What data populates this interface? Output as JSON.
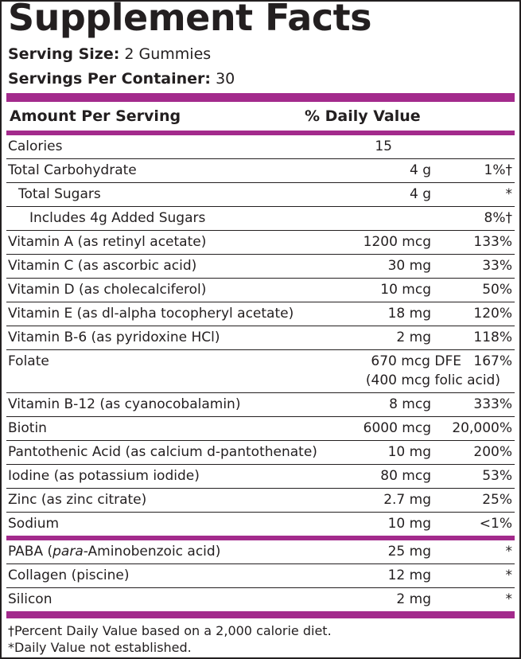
{
  "title": "Supplement Facts",
  "serving_size": {
    "label": "Serving Size:",
    "value": "2 Gummies"
  },
  "servings_per_container": {
    "label": "Servings Per Container:",
    "value": "30"
  },
  "header": {
    "amount": "Amount Per Serving",
    "dv": "% Daily Value"
  },
  "brand_color": "#a32a8c",
  "rows": [
    {
      "name": "Calories",
      "amount": "15",
      "dv": ""
    },
    {
      "name": "Total Carbohydrate",
      "amount": "4 g",
      "dv": "1%†"
    },
    {
      "name": "Total Sugars",
      "amount": "4 g",
      "dv": "*"
    },
    {
      "name": "Includes 4g Added Sugars",
      "amount": "",
      "dv": "8%†"
    },
    {
      "name": "Vitamin A (as retinyl acetate)",
      "amount": "1200 mcg",
      "dv": "133%"
    },
    {
      "name": "Vitamin C (as ascorbic acid)",
      "amount": "30 mg",
      "dv": "33%"
    },
    {
      "name": "Vitamin D (as cholecalciferol)",
      "amount": "10 mcg",
      "dv": "50%"
    },
    {
      "name": "Vitamin E (as dl-alpha tocopheryl acetate)",
      "amount": "18 mg",
      "dv": "120%"
    },
    {
      "name": "Vitamin B-6 (as pyridoxine HCl)",
      "amount": "2 mg",
      "dv": "118%"
    },
    {
      "name": "Folate",
      "amount": "670 mcg DFE",
      "dv": "167%",
      "sub_amount": "(400 mcg folic acid)"
    },
    {
      "name": "Vitamin B-12 (as cyanocobalamin)",
      "amount": "8 mcg",
      "dv": "333%"
    },
    {
      "name": "Biotin",
      "amount": "6000 mcg",
      "dv": "20,000%"
    },
    {
      "name": "Pantothenic Acid (as calcium d-pantothenate)",
      "amount": "10 mg",
      "dv": "200%"
    },
    {
      "name": "Iodine (as potassium iodide)",
      "amount": "80 mcg",
      "dv": "53%"
    },
    {
      "name": "Zinc (as zinc citrate)",
      "amount": "2.7 mg",
      "dv": "25%"
    },
    {
      "name": "Sodium",
      "amount": "10 mg",
      "dv": "<1%"
    },
    {
      "name_before": "PABA (",
      "name_italic": "para",
      "name_after": "-Aminobenzoic acid)",
      "amount": "25 mg",
      "dv": "*"
    },
    {
      "name": "Collagen (piscine)",
      "amount": "12 mg",
      "dv": "*"
    },
    {
      "name": "Silicon",
      "amount": "2 mg",
      "dv": "*"
    }
  ],
  "footnotes": [
    "†Percent Daily Value based on a 2,000 calorie diet.",
    "*Daily Value not established."
  ]
}
